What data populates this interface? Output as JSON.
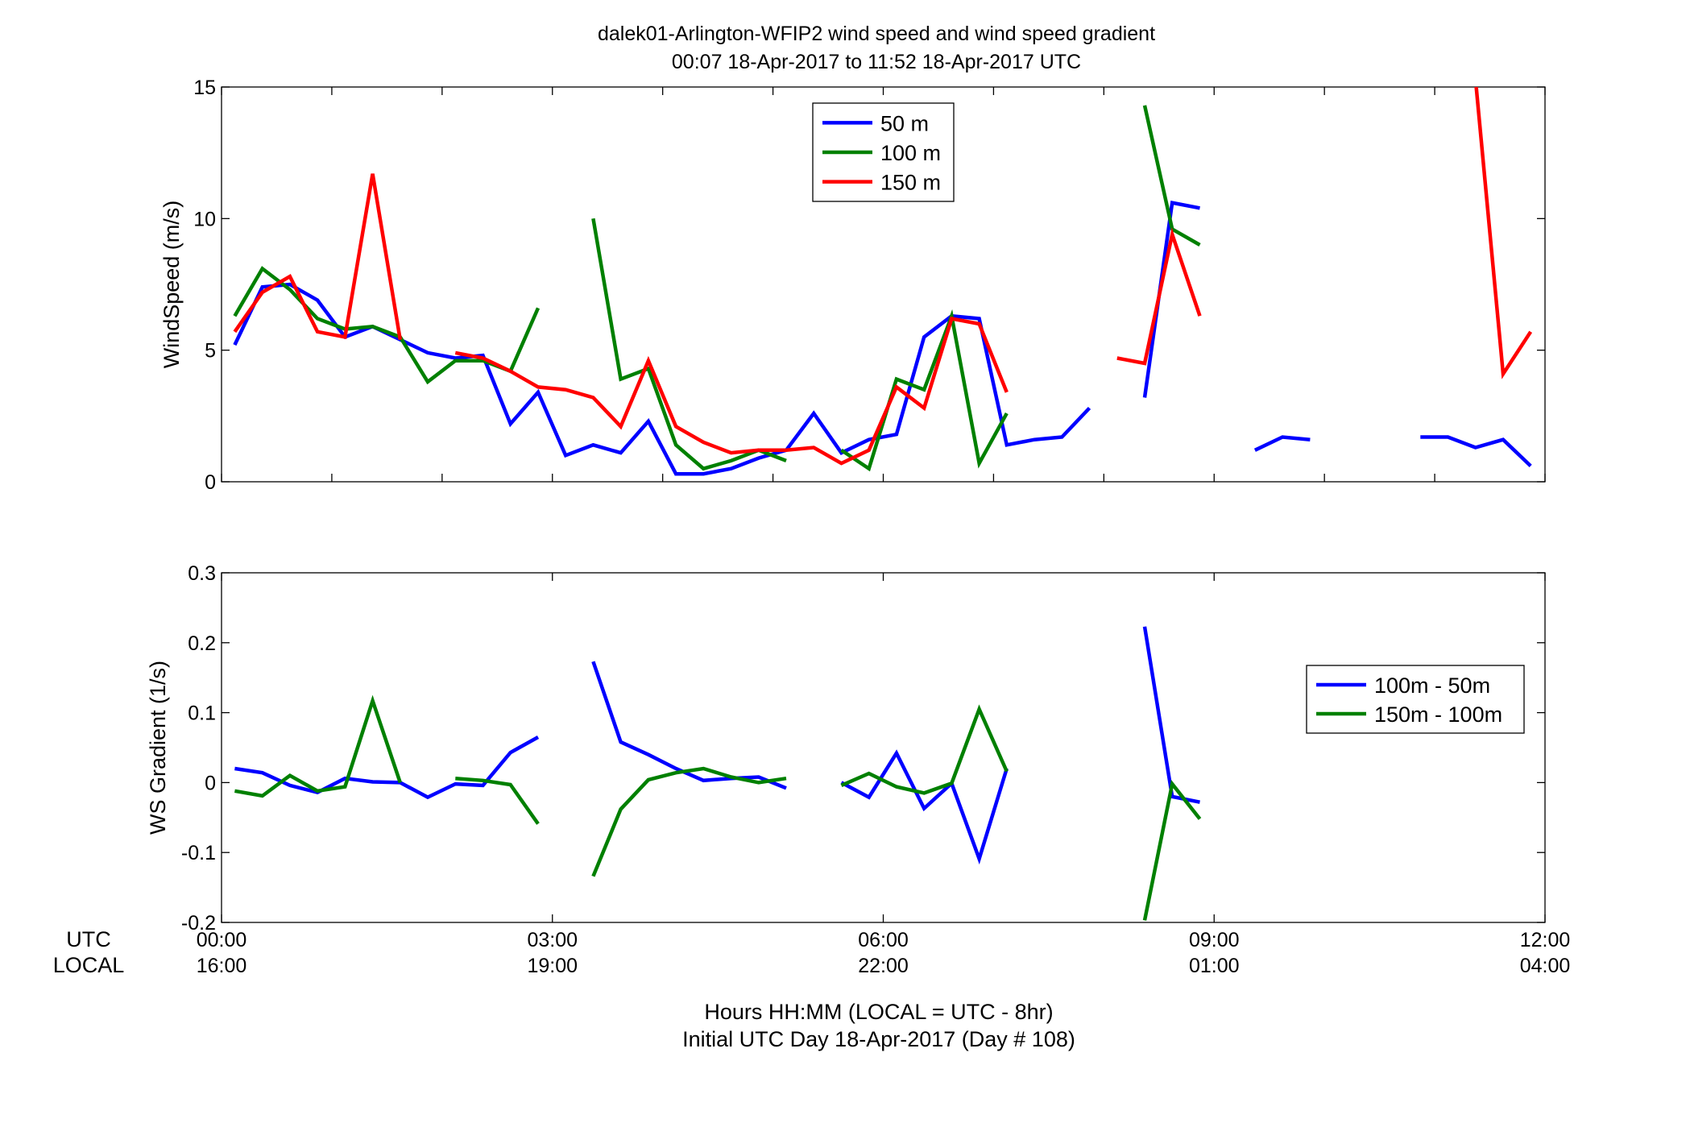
{
  "title_line1": "dalek01-Arlington-WFIP2  wind speed and wind speed gradient",
  "title_line2": "00:07 18-Apr-2017 to 11:52 18-Apr-2017  UTC",
  "x_caption_line1": "Hours HH:MM  (LOCAL = UTC - 8hr)",
  "x_caption_line2": "Initial UTC Day 18-Apr-2017 (Day # 108)",
  "row_labels": {
    "utc": "UTC",
    "local": "LOCAL"
  },
  "x_ticks": [
    {
      "h": 0,
      "utc": "00:00",
      "local": "16:00"
    },
    {
      "h": 3,
      "utc": "03:00",
      "local": "19:00"
    },
    {
      "h": 6,
      "utc": "06:00",
      "local": "22:00"
    },
    {
      "h": 9,
      "utc": "09:00",
      "local": "01:00"
    },
    {
      "h": 12,
      "utc": "12:00",
      "local": "04:00"
    }
  ],
  "colors": {
    "blue": "#0000ff",
    "green": "#008000",
    "red": "#ff0000"
  },
  "chart_data": [
    {
      "type": "line",
      "ylabel": "WindSpeed (m/s)",
      "xlim": [
        0,
        12
      ],
      "ylim": [
        0,
        15
      ],
      "yticks": [
        0,
        5,
        10,
        15
      ],
      "yticklabels": [
        "0",
        "5",
        "10",
        "15"
      ],
      "grid": false,
      "legend_position": "top-center",
      "series": [
        {
          "name": "50 m",
          "color": "#0000ff",
          "x": [
            0.12,
            0.37,
            0.62,
            0.87,
            1.12,
            1.37,
            1.62,
            1.87,
            2.12,
            2.37,
            2.62,
            2.87,
            3.12,
            3.37,
            3.62,
            3.87,
            4.12,
            4.37,
            4.62,
            4.87,
            5.12,
            5.37,
            5.62,
            5.87,
            6.12,
            6.37,
            6.62,
            6.87,
            7.12,
            7.37,
            7.62,
            7.87,
            null,
            8.37,
            8.62,
            8.87,
            null,
            9.37,
            9.62,
            9.87,
            null,
            10.87,
            11.12,
            11.37,
            11.62,
            11.87
          ],
          "y": [
            5.2,
            7.4,
            7.5,
            6.9,
            5.5,
            5.9,
            5.4,
            4.9,
            4.7,
            4.8,
            2.2,
            3.4,
            1.0,
            1.4,
            1.1,
            2.3,
            0.3,
            0.3,
            0.5,
            0.9,
            1.2,
            2.6,
            1.1,
            1.6,
            1.8,
            5.5,
            6.3,
            6.2,
            1.4,
            1.6,
            1.7,
            2.8,
            null,
            3.2,
            10.6,
            10.4,
            null,
            1.2,
            1.7,
            1.6,
            null,
            1.7,
            1.7,
            1.3,
            1.6,
            0.6
          ]
        },
        {
          "name": "100 m",
          "color": "#008000",
          "x": [
            0.12,
            0.37,
            0.62,
            0.87,
            1.12,
            1.37,
            1.62,
            1.87,
            2.12,
            2.37,
            2.62,
            2.87,
            null,
            3.37,
            3.62,
            3.87,
            4.12,
            4.37,
            4.62,
            4.87,
            5.12,
            null,
            5.62,
            5.87,
            6.12,
            6.37,
            6.62,
            6.87,
            7.12,
            null,
            8.37,
            8.62,
            8.87
          ],
          "y": [
            6.3,
            8.1,
            7.3,
            6.2,
            5.8,
            5.9,
            5.5,
            3.8,
            4.6,
            4.6,
            4.2,
            6.6,
            null,
            10.0,
            3.9,
            4.3,
            1.4,
            0.5,
            0.8,
            1.2,
            0.8,
            null,
            1.2,
            0.5,
            3.9,
            3.5,
            6.3,
            0.7,
            2.6,
            null,
            14.3,
            9.6,
            9.0
          ]
        },
        {
          "name": "150 m",
          "color": "#ff0000",
          "x": [
            0.12,
            0.37,
            0.62,
            0.87,
            1.12,
            1.37,
            1.62,
            null,
            2.12,
            2.37,
            2.62,
            2.87,
            3.12,
            3.37,
            3.62,
            3.87,
            4.12,
            4.37,
            4.62,
            4.87,
            5.12,
            5.37,
            5.62,
            5.87,
            6.12,
            6.37,
            6.62,
            6.87,
            7.12,
            null,
            8.12,
            8.37,
            8.62,
            8.87,
            null,
            11.37,
            11.62,
            11.87
          ],
          "y": [
            5.7,
            7.2,
            7.8,
            5.7,
            5.5,
            11.7,
            5.4,
            null,
            4.9,
            4.7,
            4.2,
            3.6,
            3.5,
            3.2,
            2.1,
            4.6,
            2.1,
            1.5,
            1.1,
            1.2,
            1.2,
            1.3,
            0.7,
            1.2,
            3.6,
            2.8,
            6.2,
            6.0,
            3.4,
            null,
            4.7,
            4.5,
            9.4,
            6.3,
            null,
            15.3,
            4.1,
            5.7
          ]
        }
      ]
    },
    {
      "type": "line",
      "ylabel": "WS Gradient (1/s)",
      "xlim": [
        0,
        12
      ],
      "ylim": [
        -0.2,
        0.3
      ],
      "yticks": [
        -0.2,
        -0.1,
        0,
        0.1,
        0.2,
        0.3
      ],
      "yticklabels": [
        "-0.2",
        "-0.1",
        "0",
        "0.1",
        "0.2",
        "0.3"
      ],
      "grid": false,
      "legend_position": "right",
      "series": [
        {
          "name": "100m - 50m",
          "color": "#0000ff",
          "x": [
            0.12,
            0.37,
            0.62,
            0.87,
            1.12,
            1.37,
            1.62,
            1.87,
            2.12,
            2.37,
            2.62,
            2.87,
            null,
            3.37,
            3.62,
            3.87,
            4.12,
            4.37,
            4.62,
            4.87,
            5.12,
            null,
            5.62,
            5.87,
            6.12,
            6.37,
            6.62,
            6.87,
            7.12,
            null,
            8.37,
            8.62,
            8.87
          ],
          "y": [
            0.02,
            0.014,
            -0.004,
            -0.014,
            0.006,
            0.001,
            0.0,
            -0.021,
            -0.002,
            -0.004,
            0.043,
            0.065,
            null,
            0.173,
            0.058,
            0.04,
            0.02,
            0.003,
            0.006,
            0.008,
            -0.008,
            null,
            0.0,
            -0.021,
            0.042,
            -0.037,
            -0.001,
            -0.109,
            0.02,
            null,
            0.223,
            -0.02,
            -0.028
          ]
        },
        {
          "name": "150m - 100m",
          "color": "#008000",
          "x": [
            0.12,
            0.37,
            0.62,
            0.87,
            1.12,
            1.37,
            1.62,
            null,
            2.12,
            2.37,
            2.62,
            2.87,
            null,
            3.37,
            3.62,
            3.87,
            4.12,
            4.37,
            4.62,
            4.87,
            5.12,
            null,
            5.62,
            5.87,
            6.12,
            6.37,
            6.62,
            6.87,
            7.12,
            null,
            8.37,
            8.62,
            8.87
          ],
          "y": [
            -0.012,
            -0.019,
            0.01,
            -0.012,
            -0.006,
            0.117,
            0.0,
            null,
            0.006,
            0.003,
            -0.003,
            -0.059,
            null,
            -0.134,
            -0.038,
            0.004,
            0.014,
            0.02,
            0.008,
            0.0,
            0.006,
            null,
            -0.004,
            0.013,
            -0.006,
            -0.015,
            -0.001,
            0.105,
            0.016,
            null,
            -0.197,
            -0.002,
            -0.052
          ]
        }
      ]
    }
  ]
}
